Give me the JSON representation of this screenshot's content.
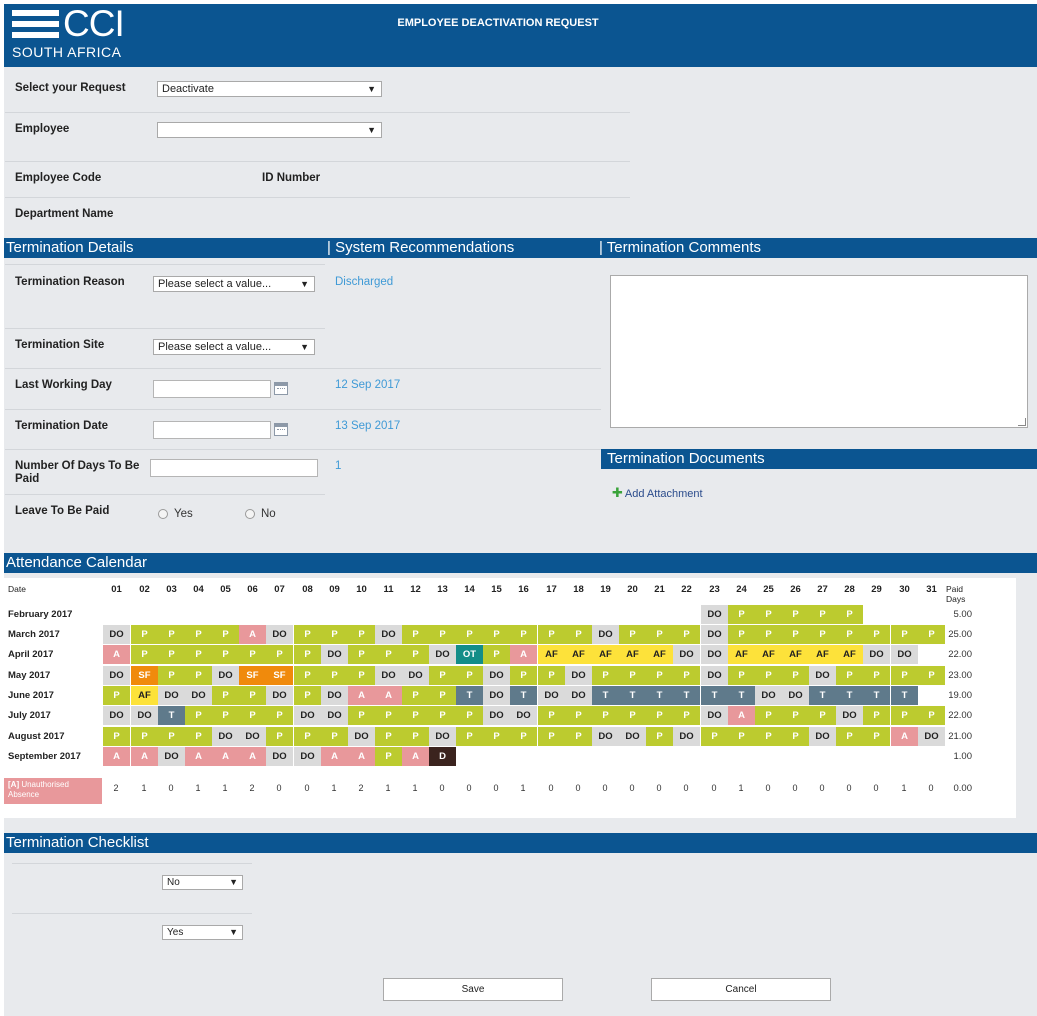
{
  "header": {
    "logo_text": "CCI",
    "logo_sub": "SOUTH AFRICA",
    "title": "EMPLOYEE DEACTIVATION REQUEST"
  },
  "request": {
    "select_label": "Select your Request",
    "select_value": "Deactivate",
    "employee_label": "Employee",
    "employee_value": "",
    "employee_code_label": "Employee Code",
    "id_number_label": "ID Number",
    "department_label": "Department Name"
  },
  "sections": {
    "termination_details": "Termination Details",
    "system_recommendations": "| System Recommendations",
    "termination_comments": "| Termination Comments",
    "termination_documents": "Termination Documents",
    "attendance_calendar": "Attendance Calendar",
    "termination_checklist": "Termination Checklist"
  },
  "details": {
    "reason_label": "Termination Reason",
    "reason_placeholder": "Please select a value...",
    "reason_recommendation": "Discharged",
    "site_label": "Termination Site",
    "site_placeholder": "Please select a value...",
    "last_day_label": "Last Working Day",
    "last_day_recommendation": "12 Sep 2017",
    "term_date_label": "Termination Date",
    "term_date_recommendation": "13 Sep 2017",
    "days_paid_label": "Number Of Days To Be Paid",
    "days_paid_recommendation": "1",
    "leave_label": "Leave To Be Paid",
    "leave_yes": "Yes",
    "leave_no": "No"
  },
  "documents": {
    "add_attachment": "Add Attachment"
  },
  "calendar": {
    "date_header": "Date",
    "paid_header": "Paid Days",
    "days": [
      "01",
      "02",
      "03",
      "04",
      "05",
      "06",
      "07",
      "08",
      "09",
      "10",
      "11",
      "12",
      "13",
      "14",
      "15",
      "16",
      "17",
      "18",
      "19",
      "20",
      "21",
      "22",
      "23",
      "24",
      "25",
      "26",
      "27",
      "28",
      "29",
      "30",
      "31"
    ],
    "colors": {
      "P": "#bccb2f",
      "DO": "#dadada",
      "A": "#e8989b",
      "AF": "#fde23a",
      "SF": "#f08a0c",
      "T": "#5f7a8b",
      "OT": "#138d88",
      "D": "#3b231e"
    },
    "months": [
      {
        "name": "February 2017",
        "paid": "5.00",
        "codes": [
          "",
          "",
          "",
          "",
          "",
          "",
          "",
          "",
          "",
          "",
          "",
          "",
          "",
          "",
          "",
          "",
          "",
          "",
          "",
          "",
          "",
          "",
          "DO",
          "P",
          "P",
          "P",
          "P",
          "P",
          "",
          "",
          ""
        ]
      },
      {
        "name": "March 2017",
        "paid": "25.00",
        "codes": [
          "DO",
          "P",
          "P",
          "P",
          "P",
          "A",
          "DO",
          "P",
          "P",
          "P",
          "DO",
          "P",
          "P",
          "P",
          "P",
          "P",
          "P",
          "P",
          "DO",
          "P",
          "P",
          "P",
          "DO",
          "P",
          "P",
          "P",
          "P",
          "P",
          "P",
          "P",
          "P"
        ]
      },
      {
        "name": "April 2017",
        "paid": "22.00",
        "codes": [
          "A",
          "P",
          "P",
          "P",
          "P",
          "P",
          "P",
          "P",
          "DO",
          "P",
          "P",
          "P",
          "DO",
          "OT",
          "P",
          "A",
          "AF",
          "AF",
          "AF",
          "AF",
          "AF",
          "DO",
          "DO",
          "AF",
          "AF",
          "AF",
          "AF",
          "AF",
          "DO",
          "DO",
          ""
        ]
      },
      {
        "name": "May 2017",
        "paid": "23.00",
        "codes": [
          "DO",
          "SF",
          "P",
          "P",
          "DO",
          "SF",
          "SF",
          "P",
          "P",
          "P",
          "DO",
          "DO",
          "P",
          "P",
          "DO",
          "P",
          "P",
          "DO",
          "P",
          "P",
          "P",
          "P",
          "DO",
          "P",
          "P",
          "P",
          "DO",
          "P",
          "P",
          "P",
          "P"
        ]
      },
      {
        "name": "June 2017",
        "paid": "19.00",
        "codes": [
          "P",
          "AF",
          "DO",
          "DO",
          "P",
          "P",
          "DO",
          "P",
          "DO",
          "A",
          "A",
          "P",
          "P",
          "T",
          "DO",
          "T",
          "DO",
          "DO",
          "T",
          "T",
          "T",
          "T",
          "T",
          "T",
          "DO",
          "DO",
          "T",
          "T",
          "T",
          "T",
          ""
        ]
      },
      {
        "name": "July 2017",
        "paid": "22.00",
        "codes": [
          "DO",
          "DO",
          "T",
          "P",
          "P",
          "P",
          "P",
          "DO",
          "DO",
          "P",
          "P",
          "P",
          "P",
          "P",
          "DO",
          "DO",
          "P",
          "P",
          "P",
          "P",
          "P",
          "P",
          "DO",
          "A",
          "P",
          "P",
          "P",
          "DO",
          "P",
          "P",
          "P"
        ]
      },
      {
        "name": "August 2017",
        "paid": "21.00",
        "codes": [
          "P",
          "P",
          "P",
          "P",
          "DO",
          "DO",
          "P",
          "P",
          "P",
          "DO",
          "P",
          "P",
          "DO",
          "P",
          "P",
          "P",
          "P",
          "P",
          "DO",
          "DO",
          "P",
          "DO",
          "P",
          "P",
          "P",
          "P",
          "DO",
          "P",
          "P",
          "A",
          "DO"
        ]
      },
      {
        "name": "September 2017",
        "paid": "1.00",
        "codes": [
          "A",
          "A",
          "DO",
          "A",
          "A",
          "A",
          "DO",
          "DO",
          "A",
          "A",
          "P",
          "A",
          "D",
          "",
          "",
          "",
          "",
          "",
          "",
          "",
          "",
          "",
          "",
          "",
          "",
          "",
          "",
          "",
          "",
          "",
          ""
        ]
      }
    ],
    "legend_code": "[A]",
    "legend_text": "Unauthorised Absence",
    "absence_counts": [
      "2",
      "1",
      "0",
      "1",
      "1",
      "2",
      "0",
      "0",
      "1",
      "2",
      "1",
      "1",
      "0",
      "0",
      "0",
      "1",
      "0",
      "0",
      "0",
      "0",
      "0",
      "0",
      "0",
      "1",
      "0",
      "0",
      "0",
      "0",
      "0",
      "1",
      "0"
    ],
    "absence_total": "0.00"
  },
  "checklist": {
    "item1_value": "No",
    "item2_value": "Yes"
  },
  "buttons": {
    "save": "Save",
    "cancel": "Cancel"
  }
}
